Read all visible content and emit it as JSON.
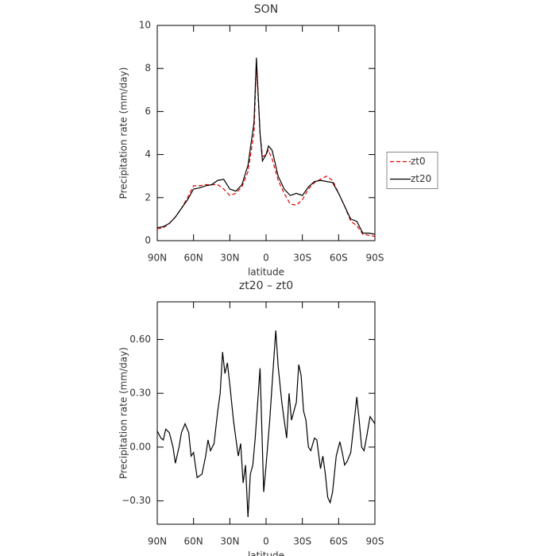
{
  "chart_data": [
    {
      "type": "line",
      "title": "SON",
      "xlabel": "latitude",
      "ylabel": "Precipitation rate (mm/day)",
      "x": [
        90,
        85,
        80,
        75,
        70,
        65,
        60,
        55,
        50,
        45,
        40,
        35,
        30,
        25,
        20,
        15,
        10,
        8,
        5,
        3,
        0,
        -2,
        -5,
        -10,
        -15,
        -20,
        -25,
        -30,
        -35,
        -40,
        -45,
        -50,
        -55,
        -60,
        -65,
        -70,
        -75,
        -80,
        -85,
        -90
      ],
      "series": [
        {
          "name": "zt0",
          "color": "#e00000",
          "style": "dashed",
          "values": [
            0.55,
            0.6,
            0.8,
            1.1,
            1.5,
            2.0,
            2.55,
            2.55,
            2.6,
            2.6,
            2.6,
            2.4,
            2.1,
            2.2,
            2.5,
            3.2,
            5.0,
            8.2,
            5.0,
            3.9,
            4.0,
            4.2,
            3.8,
            2.8,
            2.2,
            1.7,
            1.65,
            1.9,
            2.4,
            2.7,
            2.85,
            3.0,
            2.8,
            2.2,
            1.6,
            0.9,
            0.7,
            0.3,
            0.25,
            0.2
          ]
        },
        {
          "name": "zt20",
          "color": "#000000",
          "style": "solid",
          "values": [
            0.6,
            0.65,
            0.8,
            1.1,
            1.5,
            1.9,
            2.4,
            2.45,
            2.55,
            2.6,
            2.8,
            2.85,
            2.4,
            2.3,
            2.6,
            3.5,
            5.5,
            8.5,
            5.0,
            3.7,
            4.0,
            4.4,
            4.2,
            3.0,
            2.4,
            2.1,
            2.2,
            2.1,
            2.5,
            2.75,
            2.8,
            2.75,
            2.7,
            2.2,
            1.6,
            1.0,
            0.9,
            0.35,
            0.35,
            0.3
          ]
        }
      ],
      "xlim": [
        90,
        -90
      ],
      "xticks": [
        {
          "value": 90,
          "label": "90N"
        },
        {
          "value": 60,
          "label": "60N"
        },
        {
          "value": 30,
          "label": "30N"
        },
        0,
        {
          "value": -30,
          "label": "30S"
        },
        {
          "value": -60,
          "label": "60S"
        },
        {
          "value": -90,
          "label": "90S"
        }
      ],
      "ylim": [
        0,
        10
      ],
      "yticks": [
        0,
        2,
        4,
        6,
        8,
        10
      ],
      "legend": "right"
    },
    {
      "type": "line",
      "title": "zt20 – zt0",
      "xlabel": "latitude",
      "ylabel": "Precipitation rate (mm/day)",
      "x": [
        90,
        87,
        85,
        83,
        80,
        77,
        75,
        72,
        70,
        67,
        64,
        62,
        60,
        57,
        55,
        53,
        50,
        48,
        46,
        43,
        40,
        38,
        36,
        34,
        32,
        30,
        27,
        25,
        23,
        21,
        19,
        17,
        15,
        13,
        11,
        9,
        5,
        2,
        0,
        -3,
        -6,
        -8,
        -10,
        -13,
        -15,
        -17,
        -19,
        -21,
        -23,
        -25,
        -27,
        -29,
        -31,
        -33,
        -35,
        -37,
        -40,
        -42,
        -45,
        -47,
        -49,
        -51,
        -53,
        -55,
        -58,
        -61,
        -63,
        -65,
        -67,
        -70,
        -73,
        -75,
        -77,
        -79,
        -81,
        -83,
        -86,
        -88,
        -90
      ],
      "values": [
        0.09,
        0.05,
        0.04,
        0.1,
        0.08,
        0.0,
        -0.09,
        0.0,
        0.08,
        0.13,
        0.08,
        -0.05,
        -0.03,
        -0.17,
        -0.16,
        -0.15,
        -0.05,
        0.04,
        -0.02,
        0.02,
        0.2,
        0.3,
        0.53,
        0.41,
        0.47,
        0.35,
        0.15,
        0.05,
        -0.05,
        0.02,
        -0.2,
        -0.1,
        -0.39,
        -0.15,
        -0.1,
        0.05,
        0.44,
        -0.25,
        -0.1,
        0.15,
        0.45,
        0.65,
        0.45,
        0.25,
        0.15,
        0.05,
        0.3,
        0.15,
        0.2,
        0.25,
        0.46,
        0.4,
        0.2,
        0.15,
        0.0,
        -0.02,
        0.05,
        0.04,
        -0.12,
        -0.05,
        -0.15,
        -0.28,
        -0.31,
        -0.25,
        -0.05,
        0.03,
        -0.03,
        -0.1,
        -0.08,
        -0.03,
        0.15,
        0.28,
        0.15,
        0.0,
        -0.02,
        0.05,
        0.17,
        0.15,
        0.13
      ],
      "color": "#000000",
      "xlim": [
        90,
        -90
      ],
      "xticks": [
        {
          "value": 90,
          "label": "90N"
        },
        {
          "value": 60,
          "label": "60N"
        },
        {
          "value": 30,
          "label": "30N"
        },
        0,
        {
          "value": -30,
          "label": "30S"
        },
        {
          "value": -60,
          "label": "60S"
        },
        {
          "value": -90,
          "label": "90S"
        }
      ],
      "ylim": [
        -0.43,
        0.81
      ],
      "yticks": [
        {
          "value": -0.3,
          "label": "−0.30"
        },
        {
          "value": 0,
          "label": "0.00"
        },
        {
          "value": 0.3,
          "label": "0.30"
        },
        {
          "value": 0.6,
          "label": "0.60"
        }
      ]
    }
  ]
}
